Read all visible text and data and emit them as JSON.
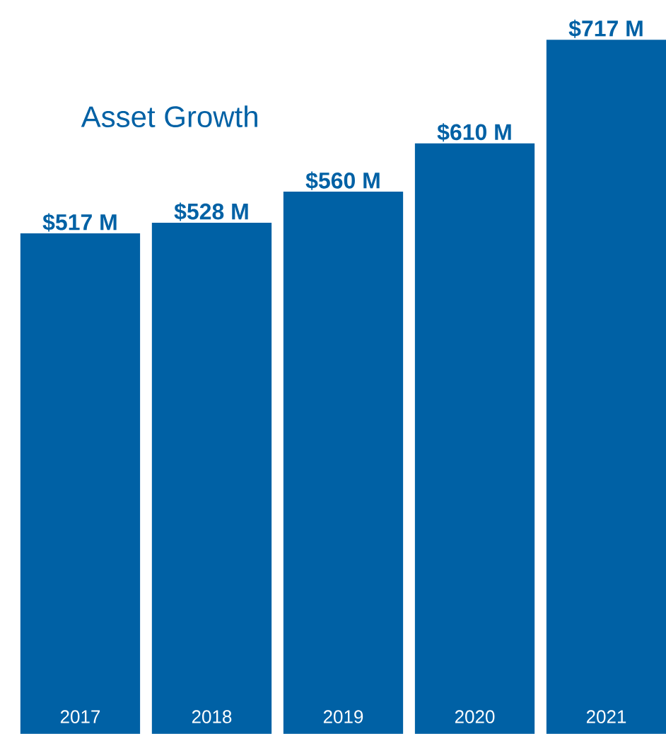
{
  "chart_data": {
    "type": "bar",
    "title": "Asset Growth",
    "categories": [
      "2017",
      "2018",
      "2019",
      "2020",
      "2021"
    ],
    "values": [
      517,
      528,
      560,
      610,
      717
    ],
    "value_labels": [
      "$517 M",
      "$528 M",
      "$560 M",
      "$610 M",
      "$717 M"
    ],
    "color": "#0061a5"
  }
}
